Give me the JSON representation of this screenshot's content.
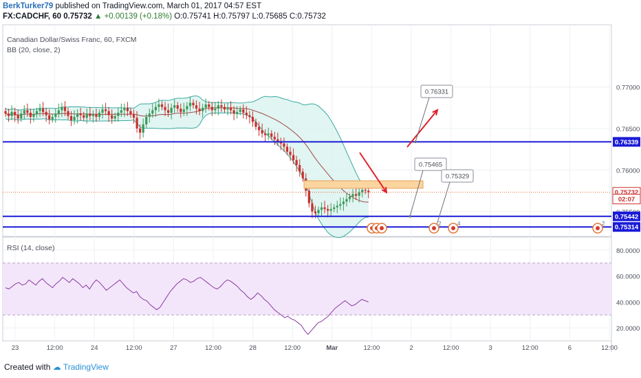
{
  "header": {
    "author": "BerkTurker79",
    "published": "published on TradingView.com, March 01, 2017 04:57 EST",
    "symbol": "FX:CADCHF, 60",
    "last": "0.75732",
    "change": "+0.00139 (+0.18%)",
    "open_label": "O:",
    "open": "0.75741",
    "high_label": "H:",
    "high": "0.75797",
    "low_label": "L:",
    "low": "0.75685",
    "close_label": "C:",
    "close": "0.75732"
  },
  "legend": {
    "instrument": "Canadian Dollar/Swiss Franc, 60, FXCM",
    "bb": "BB (20, close, 2)"
  },
  "rsi_legend": "RSI (14, close)",
  "footer": {
    "created_with": "Created with",
    "brand": "TradingView"
  },
  "colors": {
    "up_candle": "#3a9a5a",
    "down_candle": "#c9302c",
    "level_line": "#1a1ad8",
    "bb_band": "#3aa8a0",
    "bb_basis": "#a04848",
    "rsi_line": "#8a3aa0",
    "arrow": "#e0202a",
    "zone": "#fbd5a0"
  },
  "chart_data": [
    {
      "type": "candlestick",
      "ylim": [
        0.752,
        0.7775
      ],
      "y_ticks": [
        "0.77000",
        "0.76500",
        "0.76000",
        "0.75500"
      ],
      "x_ticks": [
        "23",
        "12:00",
        "24",
        "12:00",
        "27",
        "12:00",
        "28",
        "12:00",
        "Mar",
        "12:00",
        "2",
        "12:00",
        "3",
        "12:00",
        "6",
        "12:00"
      ],
      "price_marks": [
        {
          "label": "0.76339",
          "value": 0.76339,
          "kind": "level"
        },
        {
          "label": "0.75732",
          "value": 0.75732,
          "kind": "last"
        },
        {
          "label": "02:07",
          "value": 0.7565,
          "kind": "countdown"
        },
        {
          "label": "0.75442",
          "value": 0.75442,
          "kind": "level"
        },
        {
          "label": "0.75314",
          "value": 0.75314,
          "kind": "level"
        }
      ],
      "horizontal_levels": [
        0.76339,
        0.75442,
        0.75314
      ],
      "callouts": [
        "0.76331",
        "0.75465",
        "0.75329"
      ],
      "zone": {
        "low": 0.7578,
        "high": 0.7587
      },
      "close_series": [
        0.7668,
        0.7665,
        0.767,
        0.7666,
        0.7662,
        0.7668,
        0.7672,
        0.7669,
        0.7664,
        0.7667,
        0.7671,
        0.7674,
        0.767,
        0.7666,
        0.7661,
        0.7664,
        0.7668,
        0.7672,
        0.7676,
        0.7671,
        0.7665,
        0.766,
        0.7664,
        0.7668,
        0.7666,
        0.7663,
        0.7668,
        0.7665,
        0.7667,
        0.7664,
        0.7669,
        0.7673,
        0.7671,
        0.7666,
        0.7662,
        0.7665,
        0.7669,
        0.7672,
        0.7675,
        0.7671,
        0.7667,
        0.7663,
        0.765,
        0.7645,
        0.7655,
        0.7664,
        0.7668,
        0.7672,
        0.7676,
        0.7679,
        0.7676,
        0.7672,
        0.7669,
        0.7675,
        0.7678,
        0.7674,
        0.767,
        0.7673,
        0.7677,
        0.7681,
        0.7678,
        0.7674,
        0.7671,
        0.7675,
        0.7679,
        0.7676,
        0.7672,
        0.7674,
        0.7678,
        0.7676,
        0.7673,
        0.7675,
        0.7672,
        0.7668,
        0.767,
        0.7673,
        0.7669,
        0.7666,
        0.7664,
        0.7658,
        0.7652,
        0.7648,
        0.7644,
        0.7642,
        0.7644,
        0.764,
        0.7637,
        0.7634,
        0.7632,
        0.7628,
        0.7622,
        0.7618,
        0.7612,
        0.7606,
        0.7598,
        0.759,
        0.7575,
        0.756,
        0.755,
        0.7548,
        0.7552,
        0.7555,
        0.7553,
        0.7551,
        0.7553,
        0.7555,
        0.7557,
        0.7559,
        0.7562,
        0.7565,
        0.7568,
        0.7571,
        0.7569,
        0.7573,
        0.7576,
        0.7575,
        0.7573
      ],
      "rsi": {
        "ylim": [
          10,
          90
        ],
        "y_ticks": [
          "80.0000",
          "60.0000",
          "40.0000",
          "20.0000"
        ],
        "band": [
          30,
          70
        ],
        "values": [
          51,
          50,
          52,
          54,
          55,
          53,
          54,
          57,
          55,
          53,
          56,
          58,
          55,
          53,
          51,
          54,
          56,
          59,
          57,
          55,
          58,
          56,
          54,
          51,
          53,
          50,
          54,
          57,
          55,
          52,
          49,
          51,
          53,
          55,
          57,
          54,
          51,
          49,
          47,
          48,
          44,
          42,
          41,
          38,
          36,
          34,
          36,
          40,
          44,
          48,
          51,
          54,
          56,
          58,
          57,
          55,
          56,
          58,
          59,
          57,
          55,
          53,
          51,
          50,
          52,
          55,
          57,
          56,
          54,
          52,
          49,
          47,
          44,
          42,
          44,
          47,
          45,
          42,
          40,
          37,
          34,
          32,
          30,
          28,
          29,
          27,
          26,
          24,
          22,
          18,
          15,
          18,
          21,
          24,
          25,
          27,
          29,
          32,
          35,
          37,
          39,
          41,
          39,
          37,
          38,
          40,
          42,
          41,
          40
        ],
        "line_color": "#8a3aa0"
      }
    }
  ]
}
